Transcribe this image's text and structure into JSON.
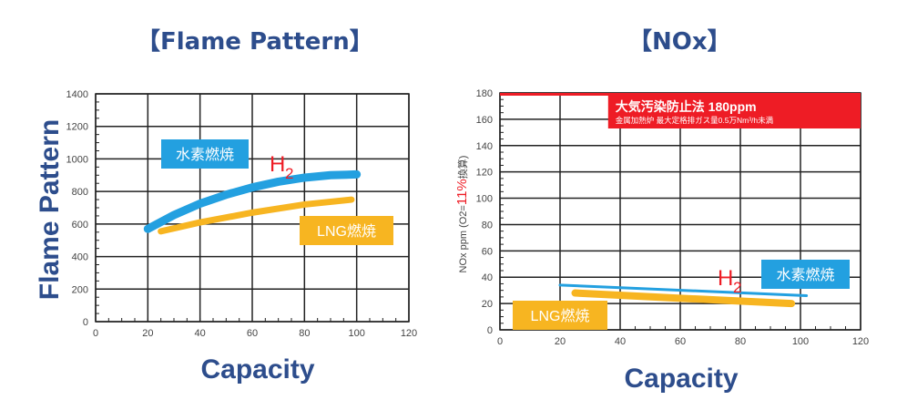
{
  "chart_data": [
    {
      "type": "line",
      "title": "【Flame Pattern】",
      "xlabel": "Capacity",
      "ylabel": "Flame Pattern",
      "xlim": [
        0,
        120
      ],
      "ylim": [
        0,
        1400
      ],
      "xticks": [
        "0",
        "20",
        "40",
        "60",
        "80",
        "100",
        "120"
      ],
      "yticks": [
        "0",
        "200",
        "400",
        "600",
        "800",
        "1000",
        "1200",
        "1400"
      ],
      "grid": true,
      "series": [
        {
          "name": "水素燃焼",
          "tag": "H",
          "tag_sub": "2",
          "color": "#23a0e0",
          "x": [
            20,
            30,
            40,
            50,
            60,
            70,
            80,
            90,
            100
          ],
          "y": [
            570,
            655,
            725,
            780,
            825,
            860,
            885,
            900,
            905
          ]
        },
        {
          "name": "LNG燃焼",
          "color": "#f7b521",
          "x": [
            25,
            40,
            60,
            80,
            98
          ],
          "y": [
            555,
            610,
            670,
            720,
            750
          ]
        }
      ]
    },
    {
      "type": "line",
      "title": "【NOx】",
      "xlabel": "Capacity",
      "ylabel_prefix": "NOx ppm (O2=",
      "ylabel_highlight": "11%",
      "ylabel_suffix": "換算)",
      "xlim": [
        0,
        120
      ],
      "ylim": [
        0,
        180
      ],
      "xticks": [
        "0",
        "20",
        "40",
        "60",
        "80",
        "100",
        "120"
      ],
      "yticks": [
        "0",
        "20",
        "40",
        "60",
        "80",
        "100",
        "120",
        "140",
        "160",
        "180"
      ],
      "grid": true,
      "limit": {
        "value": 180,
        "label": "大気汚染防止法  180ppm",
        "note": "金属加熱炉  最大定格排ガス量0.5万Nm³/h未満",
        "color": "#ee1c25"
      },
      "series": [
        {
          "name": "水素燃焼",
          "tag": "H",
          "tag_sub": "2",
          "color": "#23a0e0",
          "x": [
            20,
            102
          ],
          "y": [
            34,
            26
          ]
        },
        {
          "name": "LNG燃焼",
          "color": "#f7b521",
          "x": [
            25,
            60,
            97
          ],
          "y": [
            28,
            24,
            20
          ]
        }
      ]
    }
  ]
}
